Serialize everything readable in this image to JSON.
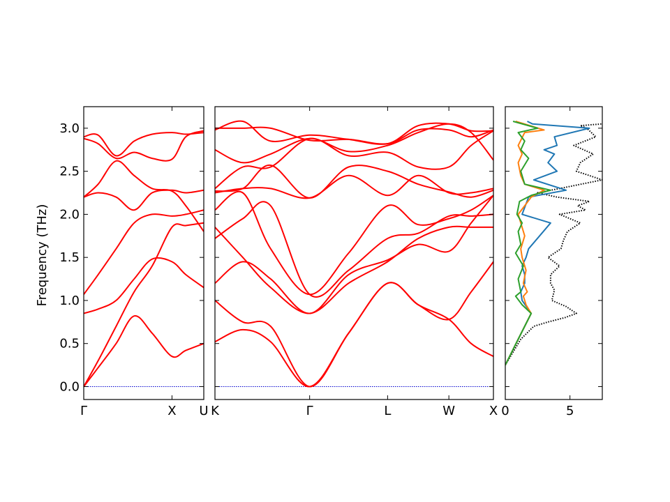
{
  "chart_data": {
    "type": "line",
    "ylabel": "Frequency (THz)",
    "ylim": [
      -0.15,
      3.25
    ],
    "yticks": [
      0.0,
      0.5,
      1.0,
      1.5,
      2.0,
      2.5,
      3.0
    ],
    "ytick_labels": [
      "0.0",
      "0.5",
      "1.0",
      "1.5",
      "2.0",
      "2.5",
      "3.0"
    ],
    "band_color": "#ff0000",
    "zero_line_color": "#0000cc",
    "band_panels": [
      {
        "xlim": [
          0,
          1.0
        ],
        "ticks": [
          {
            "x": 0,
            "label": "Γ"
          },
          {
            "x": 0.735,
            "label": "X"
          },
          {
            "x": 1.0,
            "label": "U"
          }
        ],
        "bands": [
          {
            "x": [
              0,
              0.12,
              0.27,
              0.42,
              0.57,
              0.735,
              0.85,
              1.0
            ],
            "y": [
              0,
              0.22,
              0.5,
              0.82,
              0.62,
              0.35,
              0.42,
              0.5
            ]
          },
          {
            "x": [
              0,
              0.12,
              0.27,
              0.42,
              0.57,
              0.735,
              0.85,
              1.0
            ],
            "y": [
              0,
              0.3,
              0.7,
              1.1,
              1.4,
              1.85,
              1.87,
              1.9
            ]
          },
          {
            "x": [
              0,
              0.12,
              0.27,
              0.42,
              0.57,
              0.735,
              0.85,
              1.0
            ],
            "y": [
              0.85,
              0.9,
              1.0,
              1.25,
              1.48,
              1.45,
              1.3,
              1.15
            ]
          },
          {
            "x": [
              0,
              0.12,
              0.27,
              0.42,
              0.57,
              0.735,
              0.85,
              1.0
            ],
            "y": [
              1.07,
              1.3,
              1.6,
              1.9,
              2.0,
              1.98,
              2.0,
              2.05
            ]
          },
          {
            "x": [
              0,
              0.12,
              0.27,
              0.42,
              0.57,
              0.735,
              0.85,
              1.0
            ],
            "y": [
              2.2,
              2.25,
              2.2,
              2.05,
              2.25,
              2.28,
              2.25,
              2.28
            ]
          },
          {
            "x": [
              0,
              0.12,
              0.27,
              0.42,
              0.57,
              0.735,
              0.85,
              1.0
            ],
            "y": [
              2.2,
              2.35,
              2.62,
              2.45,
              2.3,
              2.27,
              2.1,
              1.8
            ]
          },
          {
            "x": [
              0,
              0.12,
              0.27,
              0.42,
              0.57,
              0.735,
              0.85,
              1.0
            ],
            "y": [
              2.9,
              2.92,
              2.68,
              2.85,
              2.93,
              2.95,
              2.93,
              2.95
            ]
          },
          {
            "x": [
              0,
              0.12,
              0.27,
              0.42,
              0.57,
              0.735,
              0.85,
              1.0
            ],
            "y": [
              2.88,
              2.82,
              2.65,
              2.72,
              2.65,
              2.64,
              2.9,
              2.97
            ]
          }
        ]
      },
      {
        "xlim": [
          0,
          1.0
        ],
        "ticks": [
          {
            "x": 0,
            "label": "K"
          },
          {
            "x": 0.34,
            "label": "Γ"
          },
          {
            "x": 0.62,
            "label": "L"
          },
          {
            "x": 0.84,
            "label": "W"
          },
          {
            "x": 1.0,
            "label": "X"
          }
        ],
        "bands": [
          {
            "x": [
              0,
              0.1,
              0.2,
              0.34,
              0.48,
              0.62,
              0.73,
              0.84,
              0.92,
              1.0
            ],
            "y": [
              0.52,
              0.66,
              0.52,
              0,
              0.62,
              1.2,
              0.95,
              0.78,
              0.5,
              0.35
            ]
          },
          {
            "x": [
              0,
              0.1,
              0.2,
              0.34,
              0.48,
              0.62,
              0.73,
              0.84,
              0.92,
              1.0
            ],
            "y": [
              1.0,
              0.75,
              0.7,
              0,
              0.62,
              1.2,
              0.95,
              0.78,
              1.1,
              1.45
            ]
          },
          {
            "x": [
              0,
              0.1,
              0.2,
              0.34,
              0.48,
              0.62,
              0.73,
              0.84,
              0.92,
              1.0
            ],
            "y": [
              1.2,
              1.45,
              1.25,
              0.85,
              1.3,
              1.47,
              1.65,
              1.57,
              1.9,
              2.22
            ]
          },
          {
            "x": [
              0,
              0.1,
              0.2,
              0.34,
              0.48,
              0.62,
              0.73,
              0.84,
              0.92,
              1.0
            ],
            "y": [
              1.85,
              1.5,
              1.15,
              0.85,
              1.2,
              1.45,
              1.72,
              1.85,
              1.85,
              1.85
            ]
          },
          {
            "x": [
              0,
              0.1,
              0.2,
              0.34,
              0.48,
              0.62,
              0.73,
              0.84,
              0.92,
              1.0
            ],
            "y": [
              1.72,
              1.95,
              2.1,
              1.07,
              1.35,
              1.72,
              1.78,
              1.98,
              1.98,
              2.0
            ]
          },
          {
            "x": [
              0,
              0.1,
              0.2,
              0.34,
              0.48,
              0.62,
              0.73,
              0.84,
              0.92,
              1.0
            ],
            "y": [
              2.05,
              2.25,
              1.6,
              1.07,
              1.55,
              2.1,
              1.88,
              1.95,
              2.05,
              2.22
            ]
          },
          {
            "x": [
              0,
              0.1,
              0.2,
              0.34,
              0.48,
              0.62,
              0.73,
              0.84,
              0.92,
              1.0
            ],
            "y": [
              2.25,
              2.3,
              2.3,
              2.19,
              2.45,
              2.22,
              2.45,
              2.25,
              2.25,
              2.3
            ]
          },
          {
            "x": [
              0,
              0.1,
              0.2,
              0.34,
              0.48,
              0.62,
              0.73,
              0.84,
              0.92,
              1.0
            ],
            "y": [
              2.27,
              2.3,
              2.57,
              2.19,
              2.55,
              2.5,
              2.35,
              2.26,
              2.2,
              2.28
            ]
          },
          {
            "x": [
              0,
              0.1,
              0.2,
              0.34,
              0.48,
              0.62,
              0.73,
              0.84,
              0.92,
              1.0
            ],
            "y": [
              2.3,
              2.55,
              2.55,
              2.88,
              2.68,
              2.72,
              2.55,
              2.55,
              2.8,
              2.97
            ]
          },
          {
            "x": [
              0,
              0.1,
              0.2,
              0.34,
              0.48,
              0.62,
              0.73,
              0.84,
              0.92,
              1.0
            ],
            "y": [
              2.75,
              2.6,
              2.7,
              2.88,
              2.73,
              2.8,
              2.95,
              3.05,
              2.95,
              2.63
            ]
          },
          {
            "x": [
              0,
              0.1,
              0.2,
              0.34,
              0.48,
              0.62,
              0.73,
              0.84,
              0.92,
              1.0
            ],
            "y": [
              2.98,
              3.08,
              2.85,
              2.92,
              2.87,
              2.82,
              3.03,
              3.05,
              2.97,
              2.97
            ]
          },
          {
            "x": [
              0,
              0.1,
              0.2,
              0.34,
              0.48,
              0.62,
              0.73,
              0.84,
              0.92,
              1.0
            ],
            "y": [
              3.0,
              3.0,
              3.0,
              2.86,
              2.87,
              2.82,
              2.98,
              2.98,
              2.9,
              2.98
            ]
          }
        ]
      }
    ],
    "dos_panel": {
      "xlim": [
        0,
        7.5
      ],
      "xticks": [
        0,
        5
      ],
      "xtick_labels": [
        "0",
        "5"
      ],
      "series": [
        {
          "color": "#000000",
          "style": "dotted",
          "x": [
            0,
            1.2,
            2.2,
            3.3,
            4.6,
            5.5,
            4.7,
            3.6,
            3.8,
            3.5,
            3.5,
            4.2,
            3.3,
            4.3,
            4.5,
            4.8,
            5.8,
            4.2,
            6.2,
            5.6,
            6.5,
            4.0,
            2.5,
            4.2,
            7.5,
            5.5,
            5.8,
            6.8,
            5.3,
            7.0,
            6.3,
            5.8,
            7.5
          ],
          "y": [
            0.25,
            0.55,
            0.7,
            0.75,
            0.8,
            0.85,
            0.93,
            1.0,
            1.12,
            1.2,
            1.3,
            1.4,
            1.5,
            1.6,
            1.7,
            1.8,
            1.9,
            2.0,
            2.05,
            2.1,
            2.15,
            2.2,
            2.25,
            2.3,
            2.4,
            2.5,
            2.6,
            2.7,
            2.8,
            2.9,
            3.0,
            3.03,
            3.05
          ]
        },
        {
          "color": "#1f77b4",
          "style": "solid",
          "x": [
            0,
            1.0,
            1.5,
            2.0,
            1.3,
            1.2,
            1.5,
            1.5,
            1.3,
            1.6,
            1.8,
            3.5,
            1.3,
            1.8,
            4.7,
            2.2,
            4.0,
            3.3,
            3.8,
            3.0,
            4.0,
            3.8,
            6.5,
            2.1,
            1.7
          ],
          "y": [
            0.25,
            0.55,
            0.7,
            0.85,
            1.0,
            1.1,
            1.2,
            1.3,
            1.4,
            1.5,
            1.6,
            1.9,
            2.0,
            2.2,
            2.28,
            2.4,
            2.5,
            2.6,
            2.7,
            2.75,
            2.8,
            2.9,
            3.0,
            3.05,
            3.08
          ]
        },
        {
          "color": "#ff7f0e",
          "style": "solid",
          "x": [
            0,
            1.0,
            1.5,
            2.0,
            1.6,
            1.4,
            1.7,
            1.4,
            1.6,
            1.3,
            1.2,
            1.5,
            1.2,
            1.0,
            1.5,
            2.0,
            3.0,
            1.5,
            1.2,
            1.0,
            1.3,
            1.0,
            1.5,
            3.0,
            0.8
          ],
          "y": [
            0.25,
            0.55,
            0.7,
            0.85,
            0.95,
            1.05,
            1.1,
            1.2,
            1.35,
            1.5,
            1.6,
            1.75,
            1.9,
            2.0,
            2.1,
            2.2,
            2.28,
            2.35,
            2.45,
            2.6,
            2.7,
            2.8,
            2.95,
            2.98,
            3.08
          ]
        },
        {
          "color": "#2ca02c",
          "style": "solid",
          "x": [
            0,
            1.0,
            1.5,
            2.0,
            1.3,
            0.8,
            1.2,
            1.0,
            1.4,
            0.8,
            1.2,
            1.0,
            1.3,
            0.9,
            1.1,
            2.0,
            3.5,
            1.5,
            1.2,
            1.8,
            1.2,
            1.5,
            1.0,
            2.5,
            0.6
          ],
          "y": [
            0.25,
            0.55,
            0.7,
            0.85,
            0.95,
            1.05,
            1.1,
            1.25,
            1.4,
            1.55,
            1.65,
            1.8,
            1.9,
            2.0,
            2.15,
            2.22,
            2.28,
            2.35,
            2.5,
            2.65,
            2.75,
            2.85,
            2.95,
            3.0,
            3.08
          ]
        }
      ]
    }
  }
}
